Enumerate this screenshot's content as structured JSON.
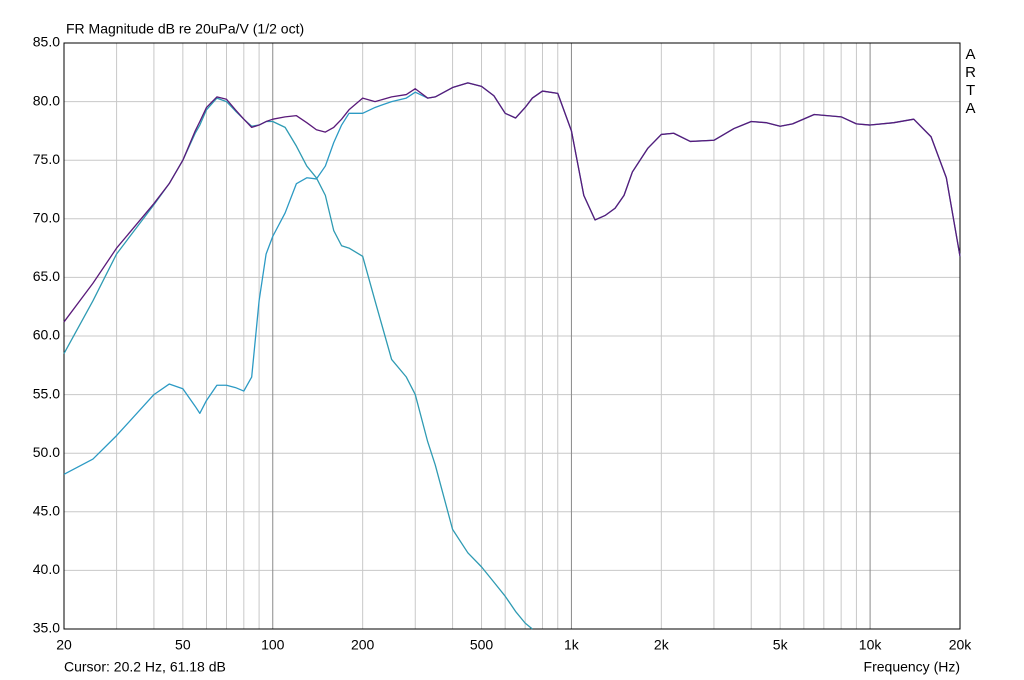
{
  "chart_data": {
    "type": "line",
    "title": "FR Magnitude dB re 20uPa/V (1/2 oct)",
    "brand": "ARTA",
    "cursor": "Cursor: 20.2 Hz, 61.18 dB",
    "xlabel": "Frequency (Hz)",
    "xscale": "log",
    "grid": true,
    "xlim": [
      20,
      20000
    ],
    "ylim": [
      35,
      85
    ],
    "xticks": [
      20,
      50,
      100,
      200,
      500,
      {
        "value": 1000,
        "label": "1k"
      },
      {
        "value": 2000,
        "label": "2k"
      },
      {
        "value": 5000,
        "label": "5k"
      },
      {
        "value": 10000,
        "label": "10k"
      },
      {
        "value": 20000,
        "label": "20k"
      }
    ],
    "minor_xticks": [
      30,
      40,
      60,
      70,
      80,
      90,
      300,
      400,
      600,
      700,
      800,
      900,
      3000,
      4000,
      6000,
      7000,
      8000,
      9000
    ],
    "yticks": [
      {
        "value": 35,
        "label": "35.0"
      },
      {
        "value": 40,
        "label": "40.0"
      },
      {
        "value": 45,
        "label": "45.0"
      },
      {
        "value": 50,
        "label": "50.0"
      },
      {
        "value": 55,
        "label": "55.0"
      },
      {
        "value": 60,
        "label": "60.0"
      },
      {
        "value": 65,
        "label": "65.0"
      },
      {
        "value": 70,
        "label": "70.0"
      },
      {
        "value": 75,
        "label": "75.0"
      },
      {
        "value": 80,
        "label": "80.0"
      },
      {
        "value": 85,
        "label": "85.0"
      }
    ],
    "x": [
      20,
      25,
      30,
      40,
      45,
      50,
      55,
      57,
      60,
      65,
      70,
      75,
      80,
      85,
      90,
      95,
      100,
      110,
      120,
      130,
      140,
      150,
      160,
      170,
      180,
      200,
      220,
      250,
      280,
      300,
      330,
      350,
      400,
      450,
      500,
      550,
      600,
      650,
      700,
      740,
      800,
      900,
      1000,
      1100,
      1200,
      1300,
      1400,
      1500,
      1600,
      1800,
      2000,
      2200,
      2500,
      3000,
      3500,
      4000,
      4500,
      5000,
      5500,
      6500,
      8000,
      9000,
      10000,
      12000,
      14000,
      16000,
      18000,
      20000
    ],
    "series": [
      {
        "color": "#2c9ac4",
        "values": [
          48.2,
          49.5,
          51.5,
          55,
          55.9,
          55.5,
          54,
          53.4,
          54.5,
          55.8,
          55.8,
          55.6,
          55.3,
          56.5,
          63,
          67,
          68.5,
          70.5,
          73,
          73.5,
          73.4,
          74.5,
          76.5,
          78,
          79,
          79,
          79.5,
          80,
          80.3,
          80.8,
          80.3,
          80.4,
          81.2,
          81.6,
          81.3,
          80.5,
          79,
          78.6,
          79.5,
          80.3,
          80.9,
          80.7,
          77.5,
          72,
          69.9,
          70.3,
          70.9,
          72,
          74,
          76,
          77.2,
          77.3,
          76.6,
          76.7,
          77.7,
          78.3,
          78.2,
          77.9,
          78.1,
          78.9,
          78.7,
          78.1,
          78,
          78.2,
          78.5,
          77,
          73.5,
          66.8
        ]
      },
      {
        "color": "#2f9bb3",
        "values": [
          58.5,
          63,
          67,
          71.2,
          73,
          75,
          77.3,
          78,
          79.3,
          80.3,
          80,
          79.2,
          78.5,
          77.9,
          78,
          78.3,
          78.3,
          77.8,
          76.2,
          74.5,
          73.5,
          72,
          69,
          67.7,
          67.5,
          66.8,
          63,
          58,
          56.5,
          55,
          51,
          49,
          43.5,
          41.5,
          40.3,
          39,
          37.8,
          36.5,
          35.5,
          35,
          null,
          null,
          null,
          null,
          null,
          null,
          null,
          null,
          null,
          null,
          null,
          null,
          null,
          null,
          null,
          null,
          null,
          null,
          null,
          null,
          null,
          null,
          null,
          null,
          null,
          null,
          null,
          null
        ]
      },
      {
        "color": "#5a1a7a",
        "values": [
          61.2,
          64.5,
          67.5,
          71.3,
          73,
          75,
          77.5,
          78.3,
          79.5,
          80.4,
          80.2,
          79.3,
          78.5,
          77.8,
          78,
          78.3,
          78.5,
          78.7,
          78.8,
          78.2,
          77.6,
          77.4,
          77.8,
          78.5,
          79.3,
          80.3,
          80,
          80.4,
          80.6,
          81.1,
          80.3,
          80.4,
          81.2,
          81.6,
          81.3,
          80.5,
          79,
          78.6,
          79.5,
          80.3,
          80.9,
          80.7,
          77.5,
          72,
          69.9,
          70.3,
          70.9,
          72,
          74,
          76,
          77.2,
          77.3,
          76.6,
          76.7,
          77.7,
          78.3,
          78.2,
          77.9,
          78.1,
          78.9,
          78.7,
          78.1,
          78,
          78.2,
          78.5,
          77,
          73.5,
          66.8
        ]
      }
    ]
  }
}
